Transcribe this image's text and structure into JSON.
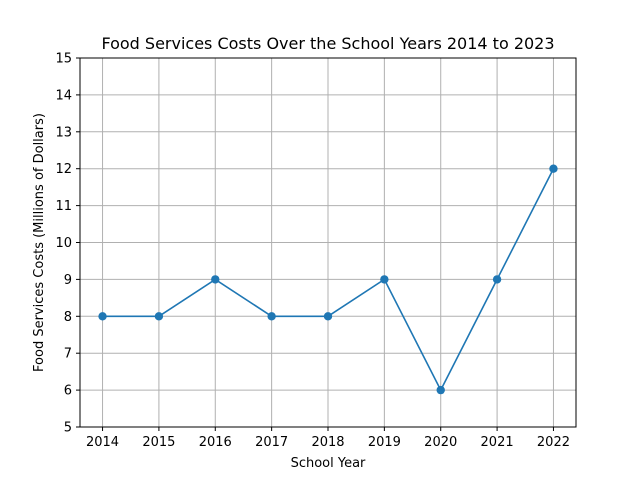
{
  "chart_data": {
    "type": "line",
    "title": "Food Services Costs Over the School Years 2014 to 2023",
    "xlabel": "School Year",
    "ylabel": "Food Services Costs (Millions of Dollars)",
    "x": [
      2014,
      2015,
      2016,
      2017,
      2018,
      2019,
      2020,
      2021,
      2022
    ],
    "series": [
      {
        "values": [
          8,
          8,
          9,
          8,
          8,
          9,
          6,
          9,
          12
        ],
        "color": "#1f77b4",
        "marker": "circle"
      }
    ],
    "xlim": [
      2013.6,
      2022.4
    ],
    "ylim": [
      5,
      15
    ],
    "yticks": [
      5,
      6,
      7,
      8,
      9,
      10,
      11,
      12,
      13,
      14,
      15
    ],
    "xticks": [
      2014,
      2015,
      2016,
      2017,
      2018,
      2019,
      2020,
      2021,
      2022
    ],
    "grid": true,
    "legend": "none"
  }
}
